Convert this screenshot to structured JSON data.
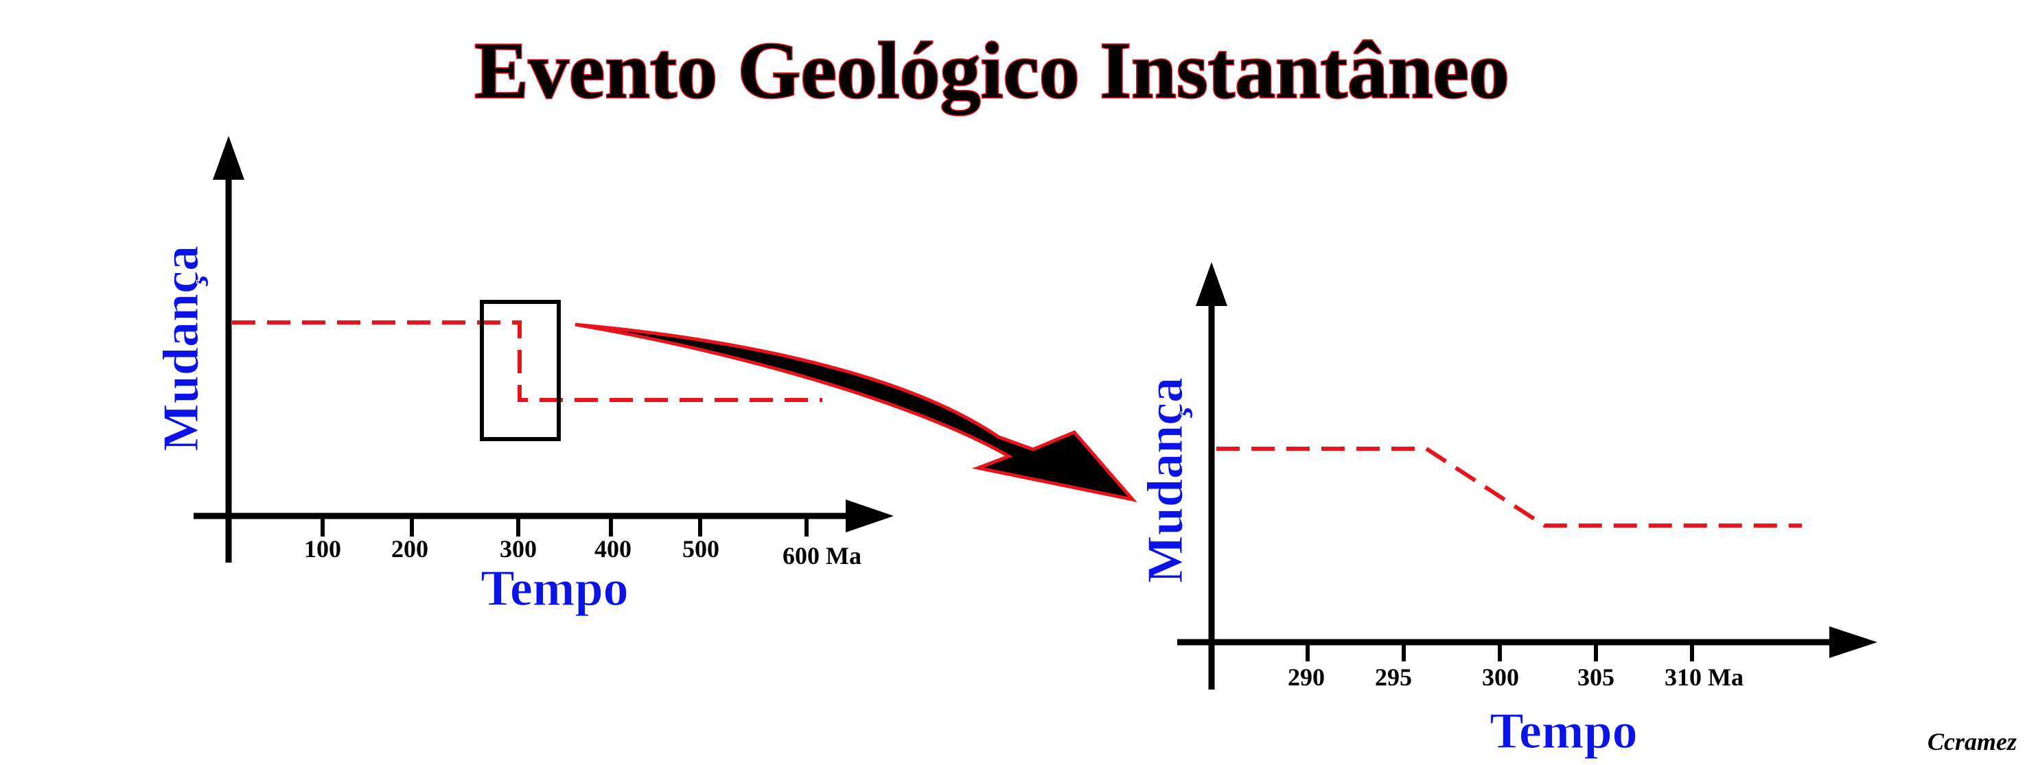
{
  "title": "Evento Geológico Instantâneo",
  "credit": "Ccramez",
  "colors": {
    "curve": "#e8141b",
    "axis_label": "#0a14e6",
    "axis": "#000000",
    "title_outline": "#e8141b"
  },
  "left_chart": {
    "y_label": "Mudança",
    "x_label": "Tempo",
    "ticks": [
      "100",
      "200",
      "300",
      "400",
      "500",
      "600 Ma"
    ],
    "curve": {
      "style": "dashed",
      "high_until": 300,
      "low_from": 300
    }
  },
  "right_chart": {
    "y_label": "Mudança",
    "x_label": "Tempo",
    "ticks": [
      "290",
      "295",
      "300",
      "305",
      "310 Ma"
    ],
    "curve": {
      "style": "dashed",
      "high_until": 296,
      "low_from": 302.5
    }
  },
  "icons": {
    "zoom_box": "selection-rectangle",
    "arrow": "curved-arrow"
  }
}
